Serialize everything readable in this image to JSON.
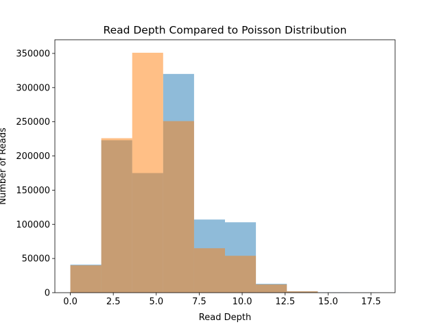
{
  "chart_data": {
    "type": "bar",
    "title": "Read Depth Compared to Poisson Distribution",
    "xlabel": "Read Depth",
    "ylabel": "Number of Reads",
    "xlim": [
      -0.9,
      18.9
    ],
    "ylim": [
      0,
      370000
    ],
    "xticks": [
      0.0,
      2.5,
      5.0,
      7.5,
      10.0,
      12.5,
      15.0,
      17.5
    ],
    "xtick_labels": [
      "0.0",
      "2.5",
      "5.0",
      "7.5",
      "10.0",
      "12.5",
      "15.0",
      "17.5"
    ],
    "yticks": [
      0,
      50000,
      100000,
      150000,
      200000,
      250000,
      300000,
      350000
    ],
    "ytick_labels": [
      "0",
      "50000",
      "100000",
      "150000",
      "200000",
      "250000",
      "300000",
      "350000"
    ],
    "grid": false,
    "legend": "none",
    "series": [
      {
        "color": "#1f77b4",
        "alpha": 0.5,
        "bins": [
          {
            "x0": 0.0,
            "x1": 1.8,
            "value": 41000
          },
          {
            "x0": 1.8,
            "x1": 3.6,
            "value": 223000
          },
          {
            "x0": 3.6,
            "x1": 5.4,
            "value": 175000
          },
          {
            "x0": 5.4,
            "x1": 7.2,
            "value": 320000
          },
          {
            "x0": 7.2,
            "x1": 9.0,
            "value": 107000
          },
          {
            "x0": 9.0,
            "x1": 10.8,
            "value": 103000
          },
          {
            "x0": 10.8,
            "x1": 12.6,
            "value": 13000
          },
          {
            "x0": 12.6,
            "x1": 14.4,
            "value": 2000
          },
          {
            "x0": 14.4,
            "x1": 16.2,
            "value": 300
          },
          {
            "x0": 16.2,
            "x1": 18.0,
            "value": 100
          }
        ]
      },
      {
        "color": "#ff7f0e",
        "alpha": 0.5,
        "bins": [
          {
            "x0": 0.0,
            "x1": 1.8,
            "value": 40000
          },
          {
            "x0": 1.8,
            "x1": 3.6,
            "value": 226000
          },
          {
            "x0": 3.6,
            "x1": 5.4,
            "value": 351000
          },
          {
            "x0": 5.4,
            "x1": 7.2,
            "value": 251000
          },
          {
            "x0": 7.2,
            "x1": 9.0,
            "value": 65000
          },
          {
            "x0": 9.0,
            "x1": 10.8,
            "value": 54000
          },
          {
            "x0": 10.8,
            "x1": 12.6,
            "value": 12000
          },
          {
            "x0": 12.6,
            "x1": 14.4,
            "value": 2000
          },
          {
            "x0": 14.4,
            "x1": 16.2,
            "value": 0
          },
          {
            "x0": 16.2,
            "x1": 18.0,
            "value": 0
          }
        ]
      }
    ]
  }
}
